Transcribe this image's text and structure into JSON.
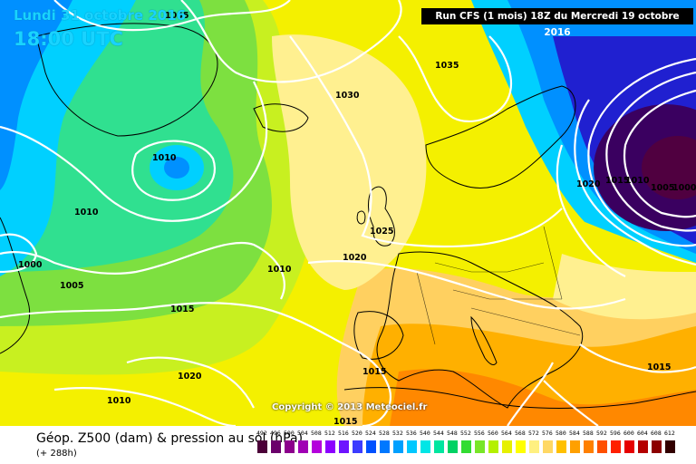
{
  "header": {
    "date": "Lundi 31 octobre 2016",
    "time": "18:00 UTC",
    "run_info": "Run CFS (1 mois) 18Z du Mercredi 19 octobre 2016"
  },
  "footer": {
    "title": "Géop. Z500 (dam) & pression au sol (hPa)",
    "lead_time": "(+ 288h)",
    "copyright": "Copyright © 2013 Meteociel.fr"
  },
  "pressure_labels": [
    "1035",
    "1035",
    "1030",
    "1010",
    "1010",
    "1000",
    "1005",
    "1010",
    "1025",
    "1020",
    "1015",
    "1020",
    "1010",
    "1015",
    "1015",
    "1020",
    "1015",
    "1010",
    "1005",
    "1000",
    "1015"
  ],
  "scale": {
    "labels": [
      "492",
      "496",
      "500",
      "504",
      "508",
      "512",
      "516",
      "520",
      "524",
      "528",
      "532",
      "536",
      "540",
      "544",
      "548",
      "552",
      "556",
      "560",
      "564",
      "568",
      "572",
      "576",
      "580",
      "584",
      "588",
      "592",
      "596",
      "600",
      "604",
      "608",
      "612"
    ],
    "colors": [
      "#4b0038",
      "#6b006b",
      "#8c008c",
      "#a000b4",
      "#b400dc",
      "#8c00ff",
      "#6e14ff",
      "#3c3cff",
      "#0050ff",
      "#0078ff",
      "#00a0ff",
      "#00c8ff",
      "#00e6e6",
      "#00e6a0",
      "#00d264",
      "#32dc32",
      "#78e628",
      "#b4f000",
      "#e6f000",
      "#ffff00",
      "#fff080",
      "#ffd864",
      "#ffc000",
      "#ffa000",
      "#ff8000",
      "#ff5000",
      "#ff2000",
      "#e60000",
      "#b40000",
      "#8c0000",
      "#320000"
    ],
    "band_colors": {
      "deep_low": "#3a0060",
      "low": "#2020d0",
      "cold": "#0090ff",
      "cool": "#00d0ff",
      "mild": "#30e090",
      "green": "#7de040",
      "yellow_green": "#c8f020",
      "yellow": "#f4f000",
      "pale": "#fff090",
      "light_orange": "#ffd060",
      "orange": "#ffb000",
      "deep_orange": "#ff8800"
    }
  }
}
